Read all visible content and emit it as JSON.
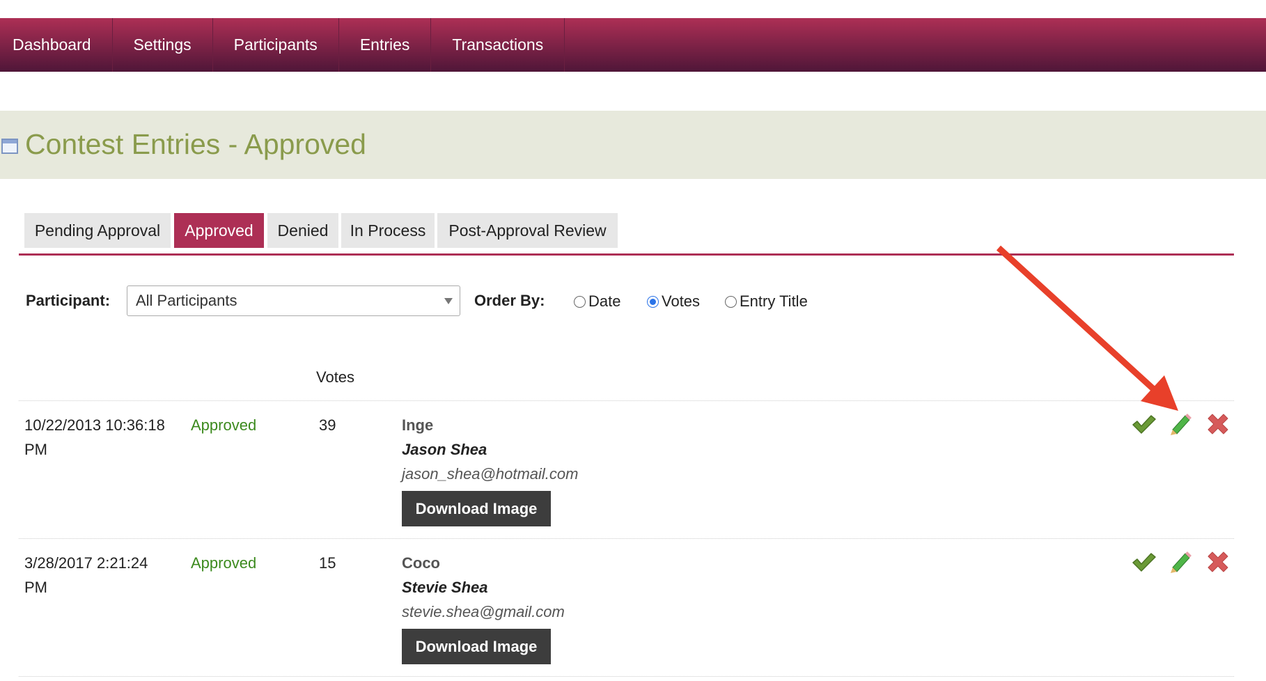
{
  "nav": {
    "items": [
      "Dashboard",
      "Settings",
      "Participants",
      "Entries",
      "Transactions"
    ]
  },
  "header": {
    "title": "Contest Entries - Approved"
  },
  "tabs": [
    {
      "label": "Pending Approval"
    },
    {
      "label": "Approved",
      "active": true
    },
    {
      "label": "Denied"
    },
    {
      "label": "In Process"
    },
    {
      "label": "Post-Approval Review"
    }
  ],
  "filters": {
    "participant_label": "Participant:",
    "participant_value": "All Participants",
    "order_label": "Order By:",
    "order_options": [
      "Date",
      "Votes",
      "Entry Title"
    ],
    "order_selected": "Votes"
  },
  "table": {
    "votes_header": "Votes",
    "download_label": "Download Image",
    "rows": [
      {
        "date": "10/22/2013 10:36:18",
        "time_suffix": "PM",
        "status": "Approved",
        "votes": "39",
        "entry_title": "Inge",
        "participant": "Jason Shea",
        "email": "jason_shea@hotmail.com"
      },
      {
        "date": "3/28/2017 2:21:24",
        "time_suffix": "PM",
        "status": "Approved",
        "votes": "15",
        "entry_title": "Coco",
        "participant": "Stevie Shea",
        "email": "stevie.shea@gmail.com"
      }
    ]
  },
  "colors": {
    "brand": "#ad2f55",
    "title": "#8a9b4c",
    "approved": "#3c8a1e",
    "annotation_arrow": "#e8402a"
  },
  "icons": [
    "calendar-icon",
    "approve-check-icon",
    "edit-pencil-icon",
    "deny-x-icon",
    "annotation-arrow"
  ]
}
